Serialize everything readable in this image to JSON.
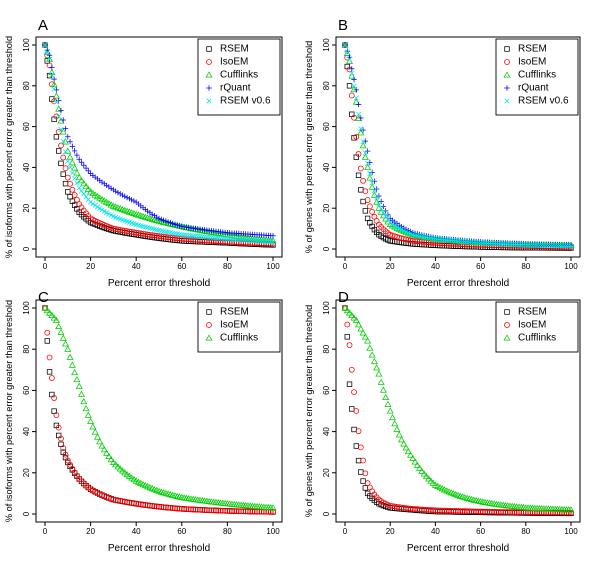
{
  "chart_data": [
    {
      "type": "scatter",
      "panel": "A",
      "xlabel": "Percent error threshold",
      "ylabel": "% of isoforms with percent error greater than threshold",
      "xlim": [
        0,
        100
      ],
      "ylim": [
        0,
        100
      ],
      "xticks": [
        "0",
        "20",
        "40",
        "60",
        "80",
        "100"
      ],
      "yticks": [
        "0",
        "20",
        "40",
        "60",
        "80",
        "100"
      ],
      "legend_position": "top-right",
      "series": [
        {
          "name": "RSEM",
          "color": "#000000",
          "marker": "square",
          "curve": [
            [
              0,
              100
            ],
            [
              2,
              85
            ],
            [
              5,
              55
            ],
            [
              10,
              28
            ],
            [
              15,
              18
            ],
            [
              20,
              13
            ],
            [
              30,
              9
            ],
            [
              40,
              7
            ],
            [
              60,
              4
            ],
            [
              80,
              3
            ],
            [
              100,
              2
            ]
          ]
        },
        {
          "name": "IsoEM",
          "color": "#ff0000",
          "marker": "circle",
          "curve": [
            [
              0,
              100
            ],
            [
              2,
              90
            ],
            [
              5,
              65
            ],
            [
              10,
              35
            ],
            [
              15,
              22
            ],
            [
              20,
              15
            ],
            [
              30,
              10
            ],
            [
              40,
              8
            ],
            [
              60,
              5
            ],
            [
              80,
              3.5
            ],
            [
              100,
              2.5
            ]
          ]
        },
        {
          "name": "Cufflinks",
          "color": "#00cc00",
          "marker": "triangle",
          "curve": [
            [
              0,
              100
            ],
            [
              2,
              93
            ],
            [
              5,
              75
            ],
            [
              10,
              48
            ],
            [
              15,
              35
            ],
            [
              20,
              28
            ],
            [
              30,
              21
            ],
            [
              40,
              17
            ],
            [
              60,
              11
            ],
            [
              80,
              7
            ],
            [
              100,
              4
            ]
          ]
        },
        {
          "name": "rQuant",
          "color": "#0000ff",
          "marker": "plus",
          "curve": [
            [
              0,
              100
            ],
            [
              2,
              95
            ],
            [
              5,
              78
            ],
            [
              10,
              55
            ],
            [
              15,
              44
            ],
            [
              20,
              37
            ],
            [
              30,
              29
            ],
            [
              40,
              23
            ],
            [
              50,
              15
            ],
            [
              60,
              11
            ],
            [
              80,
              8
            ],
            [
              100,
              6.5
            ]
          ]
        },
        {
          "name": "RSEM v0.6",
          "color": "#00e5e5",
          "marker": "cross",
          "curve": [
            [
              0,
              100
            ],
            [
              2,
              93
            ],
            [
              5,
              72
            ],
            [
              10,
              43
            ],
            [
              15,
              30
            ],
            [
              20,
              23
            ],
            [
              30,
              16
            ],
            [
              40,
              12
            ],
            [
              60,
              7
            ],
            [
              80,
              5
            ],
            [
              100,
              3.5
            ]
          ]
        }
      ]
    },
    {
      "type": "scatter",
      "panel": "B",
      "xlabel": "Percent error threshold",
      "ylabel": "% of genes with percent error greater than threshold",
      "xlim": [
        0,
        100
      ],
      "ylim": [
        0,
        100
      ],
      "xticks": [
        "0",
        "20",
        "40",
        "60",
        "80",
        "100"
      ],
      "yticks": [
        "0",
        "20",
        "40",
        "60",
        "80",
        "100"
      ],
      "legend_position": "top-right",
      "series": [
        {
          "name": "RSEM",
          "color": "#000000",
          "marker": "square",
          "curve": [
            [
              0,
              100
            ],
            [
              2,
              80
            ],
            [
              5,
              45
            ],
            [
              10,
              15
            ],
            [
              15,
              7
            ],
            [
              20,
              4
            ],
            [
              30,
              2.5
            ],
            [
              40,
              1.8
            ],
            [
              60,
              1
            ],
            [
              80,
              0.6
            ],
            [
              100,
              0.5
            ]
          ]
        },
        {
          "name": "IsoEM",
          "color": "#ff0000",
          "marker": "circle",
          "curve": [
            [
              0,
              100
            ],
            [
              2,
              88
            ],
            [
              5,
              55
            ],
            [
              10,
              24
            ],
            [
              15,
              12
            ],
            [
              20,
              7
            ],
            [
              30,
              4
            ],
            [
              40,
              3
            ],
            [
              60,
              2
            ],
            [
              80,
              1.5
            ],
            [
              100,
              1
            ]
          ]
        },
        {
          "name": "Cufflinks",
          "color": "#00cc00",
          "marker": "triangle",
          "curve": [
            [
              0,
              100
            ],
            [
              2,
              92
            ],
            [
              5,
              72
            ],
            [
              10,
              40
            ],
            [
              15,
              20
            ],
            [
              20,
              12
            ],
            [
              30,
              7
            ],
            [
              40,
              5
            ],
            [
              60,
              3
            ],
            [
              80,
              2.2
            ],
            [
              100,
              1.8
            ]
          ]
        },
        {
          "name": "rQuant",
          "color": "#0000ff",
          "marker": "plus",
          "curve": [
            [
              0,
              100
            ],
            [
              2,
              94
            ],
            [
              5,
              78
            ],
            [
              10,
              48
            ],
            [
              15,
              26
            ],
            [
              20,
              15
            ],
            [
              30,
              8
            ],
            [
              40,
              5.5
            ],
            [
              60,
              3.5
            ],
            [
              80,
              2.5
            ],
            [
              100,
              2
            ]
          ]
        },
        {
          "name": "RSEM v0.6",
          "color": "#00e5e5",
          "marker": "cross",
          "curve": [
            [
              0,
              100
            ],
            [
              2,
              93
            ],
            [
              5,
              74
            ],
            [
              10,
              42
            ],
            [
              15,
              22
            ],
            [
              20,
              13
            ],
            [
              30,
              7
            ],
            [
              40,
              5
            ],
            [
              60,
              3
            ],
            [
              80,
              2
            ],
            [
              100,
              1.5
            ]
          ]
        }
      ]
    },
    {
      "type": "scatter",
      "panel": "C",
      "xlabel": "Percent error threshold",
      "ylabel": "% of isoforms with percent error greater than threshold",
      "xlim": [
        0,
        100
      ],
      "ylim": [
        0,
        100
      ],
      "xticks": [
        "0",
        "20",
        "40",
        "60",
        "80",
        "100"
      ],
      "yticks": [
        "0",
        "20",
        "40",
        "60",
        "80",
        "100"
      ],
      "legend_position": "top-right",
      "series": [
        {
          "name": "RSEM",
          "color": "#000000",
          "marker": "square",
          "curve": [
            [
              0,
              100
            ],
            [
              1,
              84
            ],
            [
              2,
              69
            ],
            [
              3,
              58
            ],
            [
              5,
              43
            ],
            [
              8,
              30
            ],
            [
              10,
              25
            ],
            [
              15,
              17
            ],
            [
              20,
              12
            ],
            [
              30,
              7
            ],
            [
              40,
              5
            ],
            [
              60,
              2.5
            ],
            [
              80,
              1.5
            ],
            [
              100,
              1
            ]
          ]
        },
        {
          "name": "IsoEM",
          "color": "#ff0000",
          "marker": "circle",
          "curve": [
            [
              0,
              100
            ],
            [
              1,
              88
            ],
            [
              2,
              76
            ],
            [
              3,
              66
            ],
            [
              5,
              48
            ],
            [
              8,
              32
            ],
            [
              10,
              26
            ],
            [
              15,
              17
            ],
            [
              20,
              12
            ],
            [
              30,
              7
            ],
            [
              40,
              5
            ],
            [
              60,
              2.5
            ],
            [
              80,
              1.5
            ],
            [
              100,
              1
            ]
          ]
        },
        {
          "name": "Cufflinks",
          "color": "#00cc00",
          "marker": "triangle",
          "curve": [
            [
              0,
              100
            ],
            [
              5,
              94
            ],
            [
              10,
              80
            ],
            [
              15,
              62
            ],
            [
              20,
              45
            ],
            [
              25,
              33
            ],
            [
              30,
              25
            ],
            [
              40,
              16
            ],
            [
              50,
              11
            ],
            [
              60,
              8
            ],
            [
              80,
              5
            ],
            [
              100,
              3
            ]
          ]
        }
      ]
    },
    {
      "type": "scatter",
      "panel": "D",
      "xlabel": "Percent error threshold",
      "ylabel": "% of genes with percent error greater than threshold",
      "xlim": [
        0,
        100
      ],
      "ylim": [
        0,
        100
      ],
      "xticks": [
        "0",
        "20",
        "40",
        "60",
        "80",
        "100"
      ],
      "yticks": [
        "0",
        "20",
        "40",
        "60",
        "80",
        "100"
      ],
      "legend_position": "top-right",
      "series": [
        {
          "name": "RSEM",
          "color": "#000000",
          "marker": "square",
          "curve": [
            [
              0,
              100
            ],
            [
              1,
              86
            ],
            [
              2,
              63
            ],
            [
              3,
              51
            ],
            [
              5,
              33
            ],
            [
              8,
              16
            ],
            [
              10,
              10
            ],
            [
              15,
              5
            ],
            [
              20,
              3
            ],
            [
              30,
              2
            ],
            [
              40,
              1.2
            ],
            [
              60,
              0.8
            ],
            [
              80,
              0.5
            ],
            [
              100,
              0.3
            ]
          ]
        },
        {
          "name": "IsoEM",
          "color": "#ff0000",
          "marker": "circle",
          "curve": [
            [
              0,
              100
            ],
            [
              1,
              92
            ],
            [
              2,
              82
            ],
            [
              3,
              70
            ],
            [
              5,
              50
            ],
            [
              8,
              26
            ],
            [
              10,
              15
            ],
            [
              15,
              7
            ],
            [
              20,
              4
            ],
            [
              30,
              2.5
            ],
            [
              40,
              1.8
            ],
            [
              60,
              1.2
            ],
            [
              80,
              0.8
            ],
            [
              100,
              0.6
            ]
          ]
        },
        {
          "name": "Cufflinks",
          "color": "#00cc00",
          "marker": "triangle",
          "curve": [
            [
              0,
              100
            ],
            [
              5,
              94
            ],
            [
              10,
              84
            ],
            [
              15,
              68
            ],
            [
              20,
              50
            ],
            [
              25,
              36
            ],
            [
              30,
              27
            ],
            [
              40,
              14
            ],
            [
              50,
              9
            ],
            [
              60,
              6
            ],
            [
              80,
              3
            ],
            [
              100,
              2
            ]
          ]
        }
      ]
    }
  ]
}
